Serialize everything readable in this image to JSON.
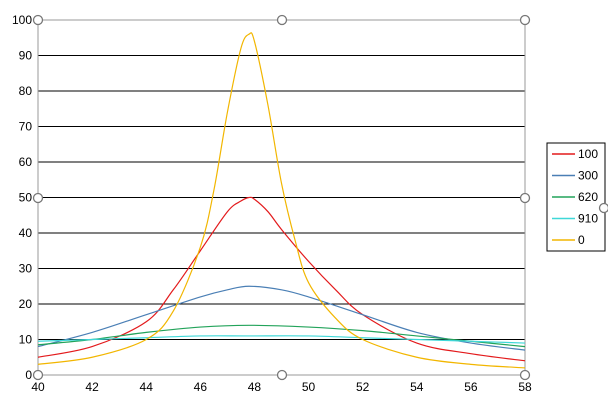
{
  "chart_data": {
    "type": "line",
    "title": "",
    "xlabel": "",
    "ylabel": "",
    "xlim": [
      40,
      58
    ],
    "ylim": [
      0,
      100
    ],
    "x_ticks": [
      "40",
      "42",
      "44",
      "46",
      "48",
      "50",
      "52",
      "54",
      "56",
      "58"
    ],
    "y_ticks": [
      "0",
      "10",
      "20",
      "30",
      "40",
      "50",
      "60",
      "70",
      "80",
      "90",
      "100"
    ],
    "grid": "horizontal",
    "legend_position": "right",
    "series": [
      {
        "name": "100",
        "color": "#e31a1c",
        "x": [
          40,
          42,
          44,
          45,
          46,
          47,
          47.5,
          47.8,
          48,
          48.5,
          49,
          50,
          51,
          52,
          54,
          56,
          58
        ],
        "y": [
          5,
          8,
          15,
          24,
          35,
          46,
          49,
          50,
          49.5,
          46,
          41,
          32,
          24,
          17,
          9,
          6,
          4
        ]
      },
      {
        "name": "300",
        "color": "#4a7fb5",
        "x": [
          40,
          42,
          44,
          46,
          47,
          47.8,
          49,
          50,
          52,
          54,
          56,
          58
        ],
        "y": [
          8,
          12,
          17,
          22,
          24,
          25,
          24,
          22,
          17,
          12,
          9,
          7
        ]
      },
      {
        "name": "620",
        "color": "#22a35a",
        "x": [
          40,
          42,
          44,
          46,
          47.8,
          50,
          52,
          54,
          56,
          58
        ],
        "y": [
          8.5,
          10,
          12,
          13.5,
          14,
          13.5,
          12.5,
          11,
          9.5,
          8
        ]
      },
      {
        "name": "910",
        "color": "#3fd8d8",
        "x": [
          40,
          42,
          44,
          46,
          47.8,
          50,
          52,
          54,
          56,
          58
        ],
        "y": [
          9.5,
          10,
          10.5,
          11,
          11,
          11,
          10.5,
          10,
          9.5,
          9
        ]
      },
      {
        "name": "0",
        "color": "#f2b600",
        "x": [
          40,
          42,
          44,
          45,
          46,
          46.5,
          47,
          47.5,
          47.8,
          48,
          48.5,
          49,
          49.5,
          50,
          51,
          52,
          54,
          56,
          58
        ],
        "y": [
          3,
          5,
          10,
          18,
          36,
          52,
          74,
          92,
          96,
          94,
          76,
          54,
          38,
          26,
          16,
          10,
          5,
          3,
          2
        ]
      }
    ]
  }
}
